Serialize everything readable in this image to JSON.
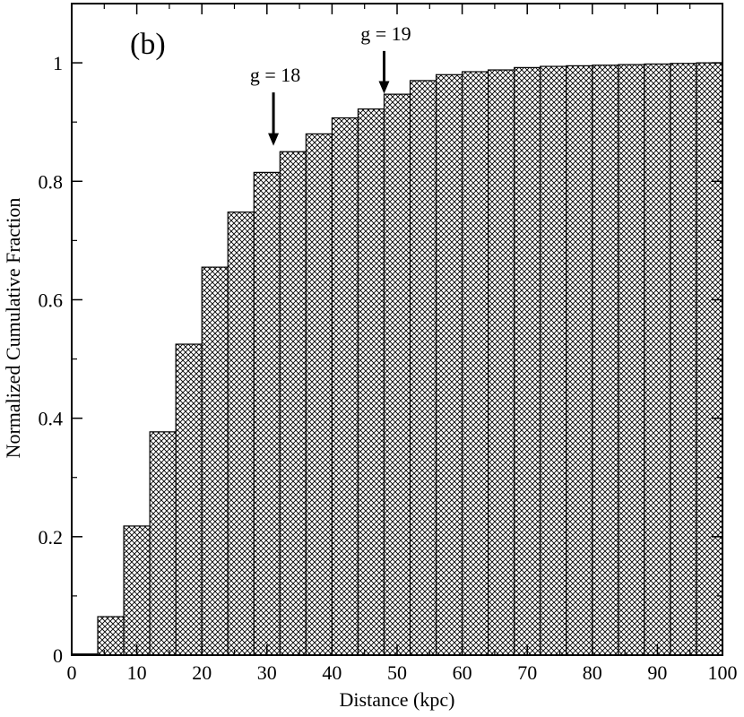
{
  "chart_data": {
    "type": "bar",
    "panel_label": "(b)",
    "xlabel": "Distance (kpc)",
    "ylabel": "Normalized Cumulative Fraction",
    "xlim": [
      0,
      100
    ],
    "ylim": [
      0,
      1.1
    ],
    "x_ticks": [
      0,
      10,
      20,
      30,
      40,
      50,
      60,
      70,
      80,
      90,
      100
    ],
    "y_ticks": [
      0,
      0.2,
      0.4,
      0.6,
      0.8,
      1
    ],
    "y_tick_labels": [
      "0",
      "0.2",
      "0.4",
      "0.6",
      "0.8",
      "1"
    ],
    "grid": false,
    "bin_width": 4,
    "bins": [
      {
        "x0": 0,
        "value": 0.002
      },
      {
        "x0": 4,
        "value": 0.065
      },
      {
        "x0": 8,
        "value": 0.218
      },
      {
        "x0": 12,
        "value": 0.377
      },
      {
        "x0": 16,
        "value": 0.525
      },
      {
        "x0": 20,
        "value": 0.655
      },
      {
        "x0": 24,
        "value": 0.748
      },
      {
        "x0": 28,
        "value": 0.815
      },
      {
        "x0": 32,
        "value": 0.85
      },
      {
        "x0": 36,
        "value": 0.88
      },
      {
        "x0": 40,
        "value": 0.907
      },
      {
        "x0": 44,
        "value": 0.922
      },
      {
        "x0": 48,
        "value": 0.947
      },
      {
        "x0": 52,
        "value": 0.97
      },
      {
        "x0": 56,
        "value": 0.98
      },
      {
        "x0": 60,
        "value": 0.985
      },
      {
        "x0": 64,
        "value": 0.988
      },
      {
        "x0": 68,
        "value": 0.992
      },
      {
        "x0": 72,
        "value": 0.994
      },
      {
        "x0": 76,
        "value": 0.995
      },
      {
        "x0": 80,
        "value": 0.996
      },
      {
        "x0": 84,
        "value": 0.997
      },
      {
        "x0": 88,
        "value": 0.998
      },
      {
        "x0": 92,
        "value": 0.999
      },
      {
        "x0": 96,
        "value": 1.0
      }
    ],
    "annotations": [
      {
        "label": "g = 18",
        "x": 31,
        "y_tip": 0.86,
        "y_tail": 0.95
      },
      {
        "label": "g = 19",
        "x": 48,
        "y_tip": 0.948,
        "y_tail": 1.02
      }
    ],
    "colors": {
      "bar_fill": "#ffffff",
      "hatch": "#000000",
      "axis": "#000000"
    }
  }
}
